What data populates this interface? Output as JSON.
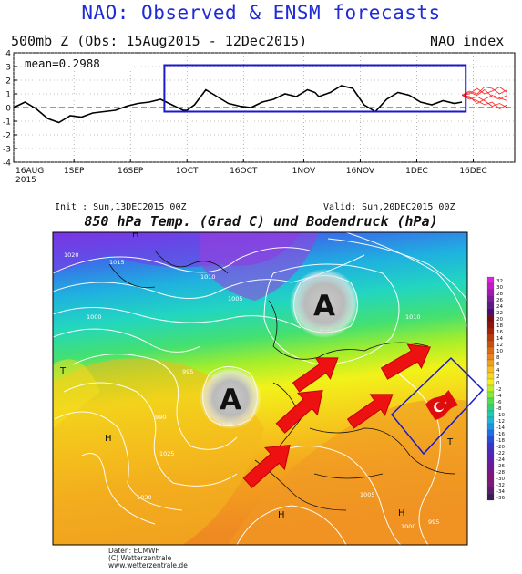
{
  "header": {
    "title": "NAO: Observed & ENSM forecasts",
    "subtitle": "500mb Z (Obs: 15Aug2015 - 12Dec2015)",
    "index_label": "NAO index"
  },
  "nao_chart": {
    "mean_label": "mean=0.2988",
    "y_ticks": [
      "4",
      "3",
      "2",
      "1",
      "0",
      "-1",
      "-2",
      "-3",
      "-4"
    ],
    "x_ticks": [
      "16AUG\n2015",
      "1SEP",
      "16SEP",
      "1OCT",
      "16OCT",
      "1NOV",
      "16NOV",
      "1DEC",
      "16DEC"
    ]
  },
  "chart_data": {
    "type": "line",
    "title": "NAO: Observed & ENSM forecasts",
    "subtitle": "500mb Z (Obs: 15Aug2015 - 12Dec2015)",
    "ylabel": "NAO index",
    "xlabel": "",
    "ylim": [
      -4,
      4
    ],
    "mean": 0.2988,
    "x_ticks": [
      "16AUG 2015",
      "1SEP",
      "16SEP",
      "1OCT",
      "16OCT",
      "1NOV",
      "16NOV",
      "1DEC",
      "16DEC"
    ],
    "series": [
      {
        "name": "Observed",
        "x": [
          0,
          3,
          6,
          9,
          12,
          15,
          18,
          21,
          24,
          27,
          30,
          33,
          36,
          39,
          42,
          45,
          46,
          48,
          51,
          54,
          57,
          60,
          63,
          66,
          69,
          72,
          75,
          78,
          80,
          81,
          84,
          87,
          90,
          93,
          96,
          99,
          102,
          105,
          108,
          111,
          114,
          117,
          119
        ],
        "values": [
          0.0,
          0.4,
          -0.1,
          -0.8,
          -1.1,
          -0.6,
          -0.7,
          -0.4,
          -0.3,
          -0.2,
          0.1,
          0.3,
          0.4,
          0.6,
          0.2,
          -0.2,
          -0.2,
          0.2,
          1.3,
          0.8,
          0.3,
          0.1,
          0.0,
          0.4,
          0.6,
          1.0,
          0.8,
          1.3,
          1.1,
          0.8,
          1.1,
          1.6,
          1.4,
          0.2,
          -0.3,
          0.6,
          1.1,
          0.9,
          0.4,
          0.2,
          0.5,
          0.3,
          0.4
        ]
      }
    ],
    "ensemble_forecasts": [
      [
        [
          119,
          0.9
        ],
        [
          121,
          0.7
        ],
        [
          123,
          0.5
        ],
        [
          125,
          0.2
        ],
        [
          127,
          0.4
        ],
        [
          129,
          -0.1
        ],
        [
          131,
          0.2
        ]
      ],
      [
        [
          119,
          0.9
        ],
        [
          121,
          1.1
        ],
        [
          123,
          0.9
        ],
        [
          125,
          1.3
        ],
        [
          127,
          0.8
        ],
        [
          129,
          0.6
        ],
        [
          131,
          0.9
        ]
      ],
      [
        [
          119,
          0.9
        ],
        [
          121,
          1.0
        ],
        [
          123,
          1.4
        ],
        [
          125,
          1.0
        ],
        [
          127,
          1.2
        ],
        [
          129,
          1.5
        ],
        [
          131,
          1.1
        ]
      ],
      [
        [
          119,
          0.9
        ],
        [
          121,
          0.6
        ],
        [
          123,
          0.8
        ],
        [
          125,
          0.5
        ],
        [
          127,
          0.1
        ],
        [
          129,
          0.3
        ],
        [
          131,
          0.0
        ]
      ],
      [
        [
          119,
          0.9
        ],
        [
          121,
          0.8
        ],
        [
          123,
          0.3
        ],
        [
          125,
          0.6
        ],
        [
          127,
          0.9
        ],
        [
          129,
          0.7
        ],
        [
          131,
          0.5
        ]
      ],
      [
        [
          119,
          0.9
        ],
        [
          121,
          1.2
        ],
        [
          123,
          1.0
        ],
        [
          125,
          1.5
        ],
        [
          127,
          1.4
        ],
        [
          129,
          1.0
        ],
        [
          131,
          1.3
        ]
      ]
    ],
    "x_grid": [
      0,
      16,
      31,
      46,
      61,
      77,
      92,
      107,
      122
    ],
    "grid": true,
    "obs_color": "#000000",
    "ens_color": "#ff2020",
    "highlight_color": "#1a1acc"
  },
  "map": {
    "init_label": "Init : Sun,13DEC2015 00Z",
    "valid_label": "Valid: Sun,20DEC2015 00Z",
    "title": "850 hPa Temp. (Grad C) und Bodendruck (hPa)",
    "anticyclone_letter": "A",
    "low_symbol": "T",
    "high_symbol": "H",
    "pressure_labels": [
      "1020",
      "1015",
      "1010",
      "1005",
      "1000",
      "995",
      "990",
      "1025",
      "1030",
      "1035"
    ],
    "scale_values": [
      "32",
      "30",
      "28",
      "26",
      "24",
      "22",
      "20",
      "18",
      "16",
      "14",
      "12",
      "10",
      "8",
      "6",
      "4",
      "2",
      "0",
      "-2",
      "-4",
      "-6",
      "-8",
      "-10",
      "-12",
      "-14",
      "-16",
      "-18",
      "-20",
      "-22",
      "-24",
      "-26",
      "-28",
      "-30",
      "-32",
      "-34",
      "-36"
    ]
  },
  "credits": {
    "line1": "Daten: ECMWF",
    "line2": "(C) Wetterzentrale",
    "line3": "www.wetterzentrale.de"
  }
}
